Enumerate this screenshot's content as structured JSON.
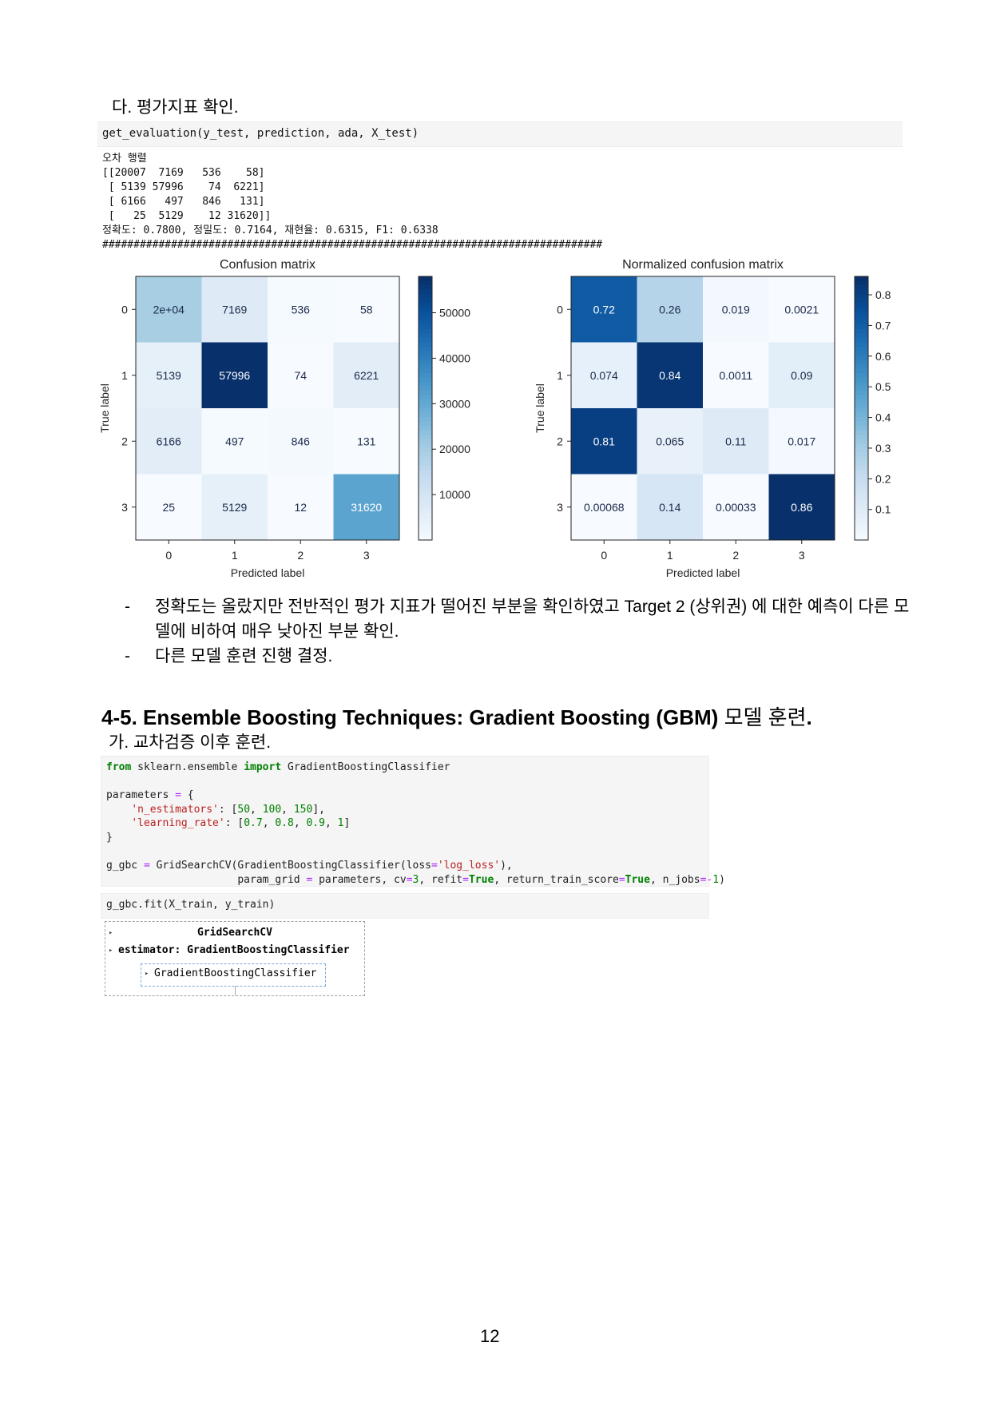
{
  "section_heading": "다. 평가지표 확인.",
  "code_cell_1": "get_evaluation(y_test, prediction, ada, X_test)",
  "output_1": {
    "title": "오차 행렬",
    "matrix_lines": [
      "[[20007  7169   536    58]",
      " [ 5139 57996    74  6221]",
      " [ 6166   497   846   131]",
      " [   25  5129    12 31620]]"
    ],
    "metrics": "정확도: 0.7800, 정밀도: 0.7164, 재현율: 0.6315, F1: 0.6338",
    "separator": "################################################################################"
  },
  "chart_data": [
    {
      "type": "heatmap",
      "title": "Confusion matrix",
      "xlabel": "Predicted label",
      "ylabel": "True label",
      "x_ticks": [
        "0",
        "1",
        "2",
        "3"
      ],
      "y_ticks": [
        "0",
        "1",
        "2",
        "3"
      ],
      "values": [
        [
          20007,
          7169,
          536,
          58
        ],
        [
          5139,
          57996,
          74,
          6221
        ],
        [
          6166,
          497,
          846,
          131
        ],
        [
          25,
          5129,
          12,
          31620
        ]
      ],
      "cell_labels": [
        [
          "2e+04",
          "7169",
          "536",
          "58"
        ],
        [
          "5139",
          "57996",
          "74",
          "6221"
        ],
        [
          "6166",
          "497",
          "846",
          "131"
        ],
        [
          "25",
          "5129",
          "12",
          "31620"
        ]
      ],
      "colormap": "Blues",
      "colorbar_range": [
        12,
        57996
      ],
      "colorbar_ticks": [
        10000,
        20000,
        30000,
        40000,
        50000
      ],
      "colorbar_tick_labels": [
        "10000",
        "20000",
        "30000",
        "40000",
        "50000"
      ]
    },
    {
      "type": "heatmap",
      "title": "Normalized confusion matrix",
      "xlabel": "Predicted label",
      "ylabel": "True label",
      "x_ticks": [
        "0",
        "1",
        "2",
        "3"
      ],
      "y_ticks": [
        "0",
        "1",
        "2",
        "3"
      ],
      "values": [
        [
          0.72,
          0.26,
          0.019,
          0.0021
        ],
        [
          0.074,
          0.84,
          0.0011,
          0.09
        ],
        [
          0.81,
          0.065,
          0.11,
          0.017
        ],
        [
          0.00068,
          0.14,
          0.00033,
          0.86
        ]
      ],
      "cell_labels": [
        [
          "0.72",
          "0.26",
          "0.019",
          "0.0021"
        ],
        [
          "0.074",
          "0.84",
          "0.0011",
          "0.09"
        ],
        [
          "0.81",
          "0.065",
          "0.11",
          "0.017"
        ],
        [
          "0.00068",
          "0.14",
          "0.00033",
          "0.86"
        ]
      ],
      "colormap": "Blues",
      "colorbar_range": [
        0.00033,
        0.86
      ],
      "colorbar_ticks": [
        0.1,
        0.2,
        0.3,
        0.4,
        0.5,
        0.6,
        0.7,
        0.8
      ],
      "colorbar_tick_labels": [
        "0.1",
        "0.2",
        "0.3",
        "0.4",
        "0.5",
        "0.6",
        "0.7",
        "0.8"
      ]
    }
  ],
  "bullets": [
    {
      "dash": "-",
      "text": "정확도는 올랐지만 전반적인 평가 지표가 떨어진 부분을 확인하였고 Target 2 (상위권) 에 대한 예측이 다른 모델에 비하여 매우 낮아진 부분 확인."
    },
    {
      "dash": "-",
      "text": "다른 모델 훈련 진행 결정."
    }
  ],
  "heading_45": {
    "bold": "4-5. Ensemble Boosting Techniques: Gradient Boosting (GBM)",
    "korean": " 모델 훈련",
    "dot": "."
  },
  "sub_heading": "가. 교차검증 이후 훈련.",
  "code_cell_3": "g_gbc.fit(X_train, y_train)",
  "gridsearch_widget": {
    "title": "GridSearchCV",
    "estimator": "estimator: GradientBoostingClassifier",
    "inner": "GradientBoostingClassifier",
    "arrow": "▸"
  },
  "page_number": "12"
}
